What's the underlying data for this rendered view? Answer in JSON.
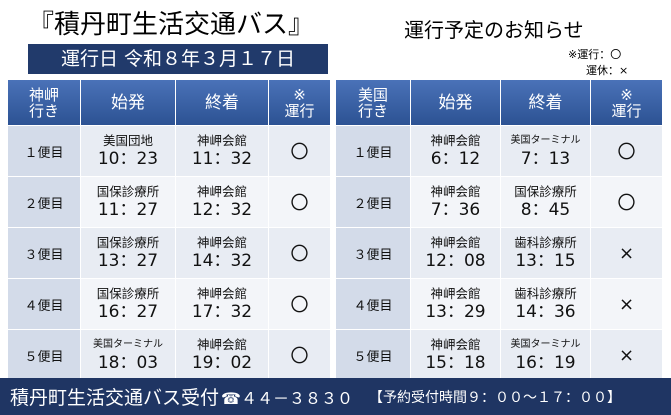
{
  "header": {
    "title": "『積丹町生活交通バス』",
    "subtitle": "運行予定のお知らせ",
    "date": "運行日 令和８年３月１７日",
    "legend": [
      "※運行：〇",
      "運休：×"
    ]
  },
  "tables": [
    {
      "header": [
        [
          "神岬",
          "行き"
        ],
        [
          "始発"
        ],
        [
          "終着"
        ],
        [
          "※",
          "運行"
        ]
      ],
      "rows": [
        {
          "trip": "１便目",
          "origin": {
            "stop": "美国団地",
            "time": "10：23"
          },
          "dest": {
            "stop": "神岬会館",
            "time": "11：32"
          },
          "status": "〇"
        },
        {
          "trip": "２便目",
          "origin": {
            "stop": "国保診療所",
            "time": "11：27"
          },
          "dest": {
            "stop": "神岬会館",
            "time": "12：32"
          },
          "status": "〇"
        },
        {
          "trip": "３便目",
          "origin": {
            "stop": "国保診療所",
            "time": "13：27"
          },
          "dest": {
            "stop": "神岬会館",
            "time": "14：32"
          },
          "status": "〇"
        },
        {
          "trip": "４便目",
          "origin": {
            "stop": "国保診療所",
            "time": "16：27"
          },
          "dest": {
            "stop": "神岬会館",
            "time": "17：32"
          },
          "status": "〇"
        },
        {
          "trip": "５便目",
          "origin": {
            "stop": "美国ターミナル",
            "time": "18：03"
          },
          "dest": {
            "stop": "神岬会館",
            "time": "19：02"
          },
          "status": "〇"
        }
      ]
    },
    {
      "header": [
        [
          "美国",
          "行き"
        ],
        [
          "始発"
        ],
        [
          "終着"
        ],
        [
          "※",
          "運行"
        ]
      ],
      "rows": [
        {
          "trip": "１便目",
          "origin": {
            "stop": "神岬会館",
            "time": "6：12"
          },
          "dest": {
            "stop": "美国ターミナル",
            "time": "7：13"
          },
          "status": "〇"
        },
        {
          "trip": "２便目",
          "origin": {
            "stop": "神岬会館",
            "time": "7：36"
          },
          "dest": {
            "stop": "国保診療所",
            "time": "8：45"
          },
          "status": "〇"
        },
        {
          "trip": "３便目",
          "origin": {
            "stop": "神岬会館",
            "time": "12：08"
          },
          "dest": {
            "stop": "歯科診療所",
            "time": "13：15"
          },
          "status": "×"
        },
        {
          "trip": "４便目",
          "origin": {
            "stop": "神岬会館",
            "time": "13：29"
          },
          "dest": {
            "stop": "歯科診療所",
            "time": "14：36"
          },
          "status": "×"
        },
        {
          "trip": "５便目",
          "origin": {
            "stop": "神岬会館",
            "time": "15：18"
          },
          "dest": {
            "stop": "美国ターミナル",
            "time": "16：19"
          },
          "status": "×"
        }
      ]
    }
  ],
  "footer": {
    "office": "積丹町生活交通バス受付",
    "phone": "☎４４－３８３０",
    "hours": "【予約受付時間９：００～１７：００】"
  }
}
